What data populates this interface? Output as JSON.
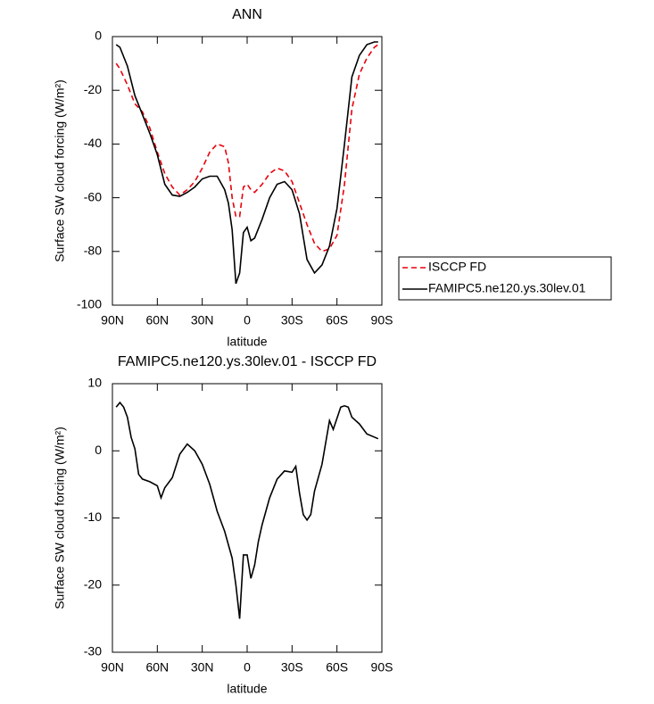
{
  "chart_data": [
    {
      "type": "line",
      "title": "ANN",
      "xlabel": "latitude",
      "ylabel": "Surface SW cloud forcing (W/m²)",
      "x": [
        87.5,
        85,
        80,
        75,
        70,
        65,
        60,
        55,
        50,
        45,
        40,
        35,
        30,
        25,
        20,
        15,
        12.5,
        10,
        7.5,
        5,
        2.5,
        0,
        -2.5,
        -5,
        -10,
        -15,
        -20,
        -25,
        -30,
        -35,
        -40,
        -45,
        -50,
        -55,
        -60,
        -65,
        -70,
        -75,
        -80,
        -85,
        -87.5
      ],
      "series": [
        {
          "name": "ISCCP FD",
          "color": "#e8000b",
          "dashed": true,
          "values": [
            -10,
            -12,
            -18,
            -25,
            -28,
            -34,
            -43,
            -51,
            -56,
            -59,
            -57,
            -54,
            -49,
            -43,
            -40,
            -41,
            -47,
            -60,
            -67,
            -67,
            -56,
            -55,
            -57,
            -58,
            -55,
            -51,
            -49,
            -50,
            -54,
            -62,
            -70,
            -77,
            -80,
            -79,
            -74,
            -55,
            -27,
            -14,
            -8,
            -4,
            -3
          ]
        },
        {
          "name": "FAMIPC5.ne120.ys.30lev.01",
          "color": "#000000",
          "dashed": false,
          "values": [
            -3,
            -4,
            -11,
            -22,
            -29,
            -36,
            -44,
            -55,
            -59,
            -59.5,
            -58,
            -56,
            -53,
            -52,
            -52,
            -57,
            -62,
            -72,
            -92,
            -88,
            -73,
            -71,
            -76,
            -75,
            -68,
            -60,
            -55,
            -54,
            -57,
            -66,
            -83,
            -88,
            -85,
            -78,
            -64,
            -40,
            -15,
            -7,
            -3,
            -2,
            -2
          ]
        }
      ],
      "xlim": [
        90,
        -90
      ],
      "ylim": [
        -100,
        0
      ],
      "xticks": [
        {
          "value": 90,
          "label": "90N"
        },
        {
          "value": 60,
          "label": "60N"
        },
        {
          "value": 30,
          "label": "30N"
        },
        0,
        {
          "value": -30,
          "label": "30S"
        },
        {
          "value": -60,
          "label": "60S"
        },
        {
          "value": -90,
          "label": "90S"
        }
      ],
      "yticks": [
        0,
        -20,
        -40,
        -60,
        -80,
        -100
      ],
      "legend": "outside-right"
    },
    {
      "type": "line",
      "title": "FAMIPC5.ne120.ys.30lev.01 - ISCCP FD",
      "xlabel": "latitude",
      "ylabel": "Surface SW cloud forcing (W/m²)",
      "x": [
        87.5,
        85,
        82.5,
        80,
        77.5,
        75,
        72.5,
        70,
        65,
        60,
        57.5,
        55,
        50,
        45,
        40,
        35,
        30,
        25,
        20,
        15,
        10,
        7.5,
        5,
        2.5,
        0,
        -2.5,
        -5,
        -7.5,
        -10,
        -15,
        -20,
        -25,
        -30,
        -32.5,
        -35,
        -37.5,
        -40,
        -42.5,
        -45,
        -50,
        -55,
        -57.5,
        -62.5,
        -65,
        -67.5,
        -70,
        -75,
        -80,
        -87.5
      ],
      "series": [
        {
          "color": "#000000",
          "dashed": false,
          "values": [
            6.5,
            7.2,
            6.5,
            5,
            2,
            0.3,
            -3.5,
            -4.2,
            -4.6,
            -5.2,
            -7,
            -5.5,
            -4,
            -0.5,
            1,
            0,
            -2,
            -5,
            -9,
            -12,
            -16,
            -20,
            -25,
            -15.5,
            -15.5,
            -19,
            -17,
            -13.5,
            -11,
            -7,
            -4.2,
            -3,
            -3.2,
            -2.3,
            -6.3,
            -9.5,
            -10.3,
            -9.5,
            -6,
            -2,
            4.5,
            3.2,
            6.5,
            6.7,
            6.5,
            5,
            4,
            2.5,
            1.8
          ]
        }
      ],
      "xlim": [
        90,
        -90
      ],
      "ylim": [
        -30,
        10
      ],
      "xticks": [
        {
          "value": 90,
          "label": "90N"
        },
        {
          "value": 60,
          "label": "60N"
        },
        {
          "value": 30,
          "label": "30N"
        },
        0,
        {
          "value": -30,
          "label": "30S"
        },
        {
          "value": -60,
          "label": "60S"
        },
        {
          "value": -90,
          "label": "90S"
        }
      ],
      "yticks": [
        10,
        0,
        -10,
        -20,
        -30
      ]
    }
  ]
}
